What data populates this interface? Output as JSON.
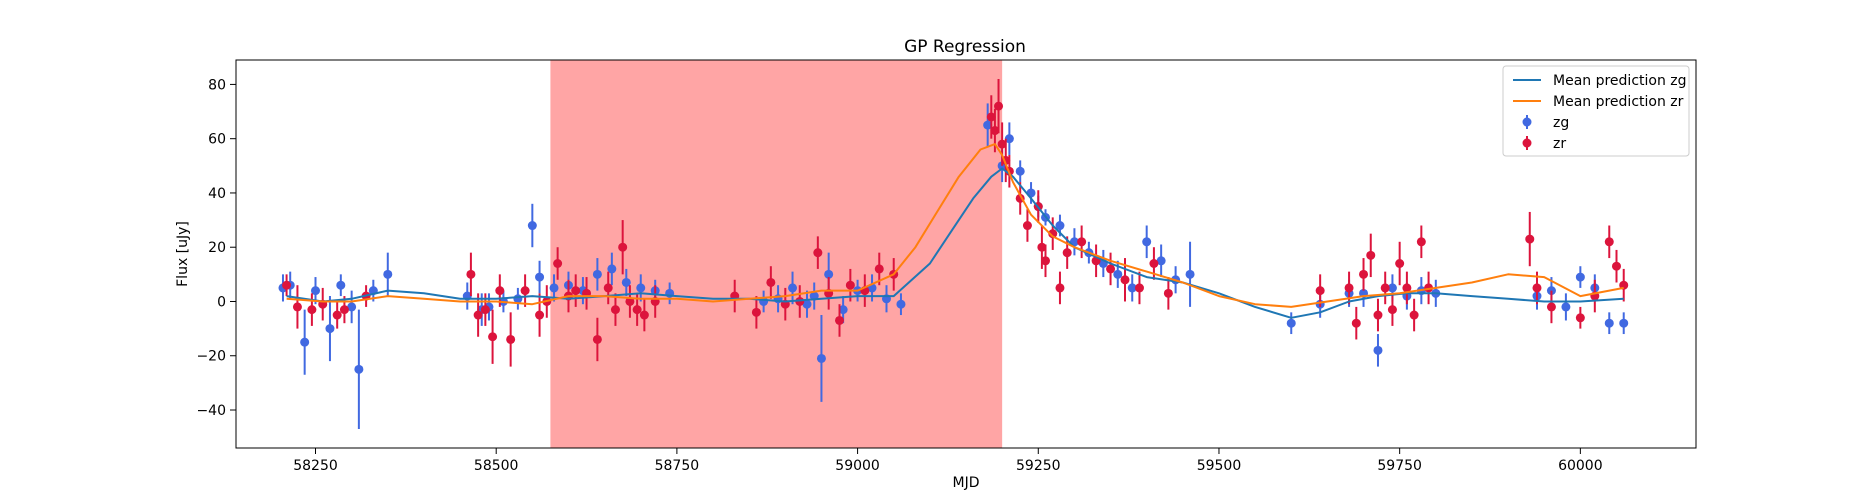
{
  "chart_data": {
    "type": "scatter",
    "title": "GP Regression",
    "xlabel": "MJD",
    "ylabel": "Flux [uJy]",
    "xlim": [
      58140,
      60160
    ],
    "ylim": [
      -54,
      89
    ],
    "xticks": [
      58250,
      58500,
      58750,
      59000,
      59250,
      59500,
      59750,
      60000
    ],
    "yticks": [
      -40,
      -20,
      0,
      20,
      40,
      60,
      80
    ],
    "grid": false,
    "legend_position": "top-right",
    "shaded_region": {
      "x_start": 58575,
      "x_end": 59200,
      "color": "#ff7f7f"
    },
    "series": [
      {
        "name": "Mean prediction zg",
        "kind": "line",
        "color": "#1f77b4",
        "x": [
          58210,
          58260,
          58300,
          58350,
          58400,
          58450,
          58500,
          58550,
          58600,
          58650,
          58700,
          58750,
          58800,
          58850,
          58900,
          58950,
          59000,
          59050,
          59100,
          59130,
          59160,
          59185,
          59200,
          59215,
          59240,
          59270,
          59300,
          59350,
          59400,
          59450,
          59500,
          59550,
          59600,
          59640,
          59680,
          59720,
          59760,
          59800,
          59850,
          59900,
          59950,
          60000,
          60060
        ],
        "y": [
          2,
          0,
          1,
          4,
          3,
          1,
          1,
          2,
          1,
          2,
          3,
          2,
          1,
          1,
          0,
          1,
          2,
          2,
          14,
          26,
          38,
          46,
          49,
          46,
          38,
          28,
          20,
          14,
          9,
          7,
          3,
          -2,
          -6,
          -4,
          0,
          2,
          3,
          3,
          2,
          1,
          0,
          0,
          1
        ]
      },
      {
        "name": "Mean prediction zr",
        "kind": "line",
        "color": "#ff7f0e",
        "x": [
          58210,
          58260,
          58300,
          58350,
          58400,
          58450,
          58500,
          58550,
          58600,
          58650,
          58700,
          58750,
          58800,
          58850,
          58900,
          58950,
          59000,
          59050,
          59080,
          59110,
          59140,
          59170,
          59190,
          59200,
          59215,
          59240,
          59270,
          59300,
          59350,
          59400,
          59450,
          59500,
          59550,
          59600,
          59650,
          59700,
          59750,
          59800,
          59850,
          59900,
          59950,
          60000,
          60060
        ],
        "y": [
          1,
          0,
          0,
          2,
          1,
          0,
          0,
          -1,
          2,
          2,
          1,
          1,
          0,
          1,
          2,
          4,
          4,
          10,
          20,
          33,
          46,
          56,
          58,
          54,
          44,
          32,
          24,
          20,
          15,
          11,
          7,
          2,
          -1,
          -2,
          0,
          2,
          3,
          5,
          7,
          10,
          9,
          2,
          5
        ]
      },
      {
        "name": "zg",
        "kind": "errorbar",
        "color": "#4169e1",
        "x": [
          58205,
          58215,
          58235,
          58250,
          58270,
          58285,
          58300,
          58310,
          58330,
          58350,
          58460,
          58480,
          58490,
          58510,
          58530,
          58550,
          58560,
          58580,
          58600,
          58620,
          58640,
          58660,
          58680,
          58700,
          58720,
          58740,
          58870,
          58890,
          58910,
          58930,
          58940,
          58950,
          58960,
          58980,
          59000,
          59020,
          59040,
          59060,
          59180,
          59200,
          59210,
          59225,
          59240,
          59250,
          59260,
          59280,
          59300,
          59320,
          59340,
          59360,
          59380,
          59400,
          59420,
          59440,
          59460,
          59600,
          59640,
          59680,
          59700,
          59720,
          59740,
          59760,
          59780,
          59800,
          59940,
          59960,
          59980,
          60000,
          60020,
          60040,
          60060
        ],
        "y": [
          5,
          6,
          -15,
          4,
          -10,
          6,
          -2,
          -25,
          4,
          10,
          2,
          -3,
          -2,
          0,
          1,
          28,
          9,
          5,
          6,
          4,
          10,
          12,
          7,
          5,
          4,
          3,
          0,
          1,
          5,
          -1,
          2,
          -21,
          10,
          -3,
          4,
          5,
          1,
          -1,
          65,
          50,
          60,
          48,
          40,
          35,
          31,
          28,
          22,
          18,
          14,
          10,
          5,
          22,
          15,
          8,
          10,
          -8,
          -1,
          3,
          3,
          -18,
          5,
          2,
          4,
          3,
          2,
          4,
          -2,
          9,
          5,
          -8,
          -8
        ],
        "err": [
          5,
          5,
          12,
          5,
          12,
          4,
          6,
          22,
          4,
          8,
          5,
          6,
          5,
          4,
          4,
          8,
          6,
          5,
          5,
          5,
          6,
          6,
          5,
          5,
          4,
          4,
          4,
          5,
          6,
          5,
          5,
          16,
          8,
          5,
          4,
          5,
          5,
          4,
          8,
          6,
          6,
          4,
          4,
          4,
          3,
          4,
          5,
          4,
          5,
          5,
          5,
          6,
          6,
          5,
          12,
          4,
          5,
          5,
          5,
          6,
          5,
          5,
          5,
          5,
          5,
          5,
          5,
          4,
          5,
          4,
          4
        ]
      },
      {
        "name": "zr",
        "kind": "errorbar",
        "color": "#dc143c",
        "x": [
          58210,
          58225,
          58245,
          58260,
          58280,
          58290,
          58320,
          58465,
          58475,
          58485,
          58495,
          58505,
          58520,
          58540,
          58560,
          58570,
          58585,
          58600,
          58610,
          58625,
          58640,
          58655,
          58665,
          58675,
          58685,
          58695,
          58705,
          58720,
          58830,
          58860,
          58880,
          58900,
          58920,
          58945,
          58960,
          58975,
          58990,
          59010,
          59030,
          59050,
          59185,
          59190,
          59195,
          59200,
          59205,
          59210,
          59225,
          59235,
          59250,
          59255,
          59260,
          59270,
          59280,
          59290,
          59310,
          59330,
          59350,
          59370,
          59390,
          59410,
          59430,
          59640,
          59680,
          59690,
          59700,
          59710,
          59720,
          59730,
          59740,
          59750,
          59760,
          59770,
          59780,
          59790,
          59930,
          59940,
          59960,
          60000,
          60020,
          60040,
          60050,
          60060
        ],
        "y": [
          6,
          -2,
          -3,
          -1,
          -5,
          -3,
          2,
          10,
          -5,
          -3,
          -13,
          4,
          -14,
          4,
          -5,
          0,
          14,
          2,
          4,
          3,
          -14,
          5,
          -3,
          20,
          0,
          -3,
          -5,
          0,
          2,
          -4,
          7,
          -1,
          0,
          18,
          3,
          -7,
          6,
          4,
          12,
          10,
          68,
          63,
          72,
          58,
          52,
          48,
          38,
          28,
          35,
          20,
          15,
          25,
          5,
          18,
          22,
          15,
          12,
          8,
          5,
          14,
          3,
          4,
          5,
          -8,
          10,
          17,
          -5,
          5,
          -3,
          14,
          5,
          -5,
          22,
          5,
          23,
          5,
          -2,
          -6,
          2,
          22,
          13,
          6
        ],
        "err": [
          4,
          8,
          6,
          6,
          5,
          5,
          4,
          8,
          8,
          6,
          10,
          6,
          10,
          6,
          8,
          6,
          6,
          6,
          6,
          6,
          8,
          6,
          6,
          10,
          6,
          6,
          6,
          6,
          6,
          6,
          6,
          6,
          6,
          6,
          6,
          6,
          6,
          6,
          6,
          6,
          8,
          8,
          10,
          8,
          8,
          6,
          6,
          6,
          6,
          8,
          6,
          6,
          6,
          6,
          6,
          6,
          6,
          8,
          6,
          6,
          6,
          6,
          6,
          6,
          6,
          8,
          6,
          6,
          6,
          8,
          6,
          6,
          6,
          6,
          10,
          6,
          6,
          4,
          6,
          6,
          6,
          6
        ]
      }
    ]
  }
}
